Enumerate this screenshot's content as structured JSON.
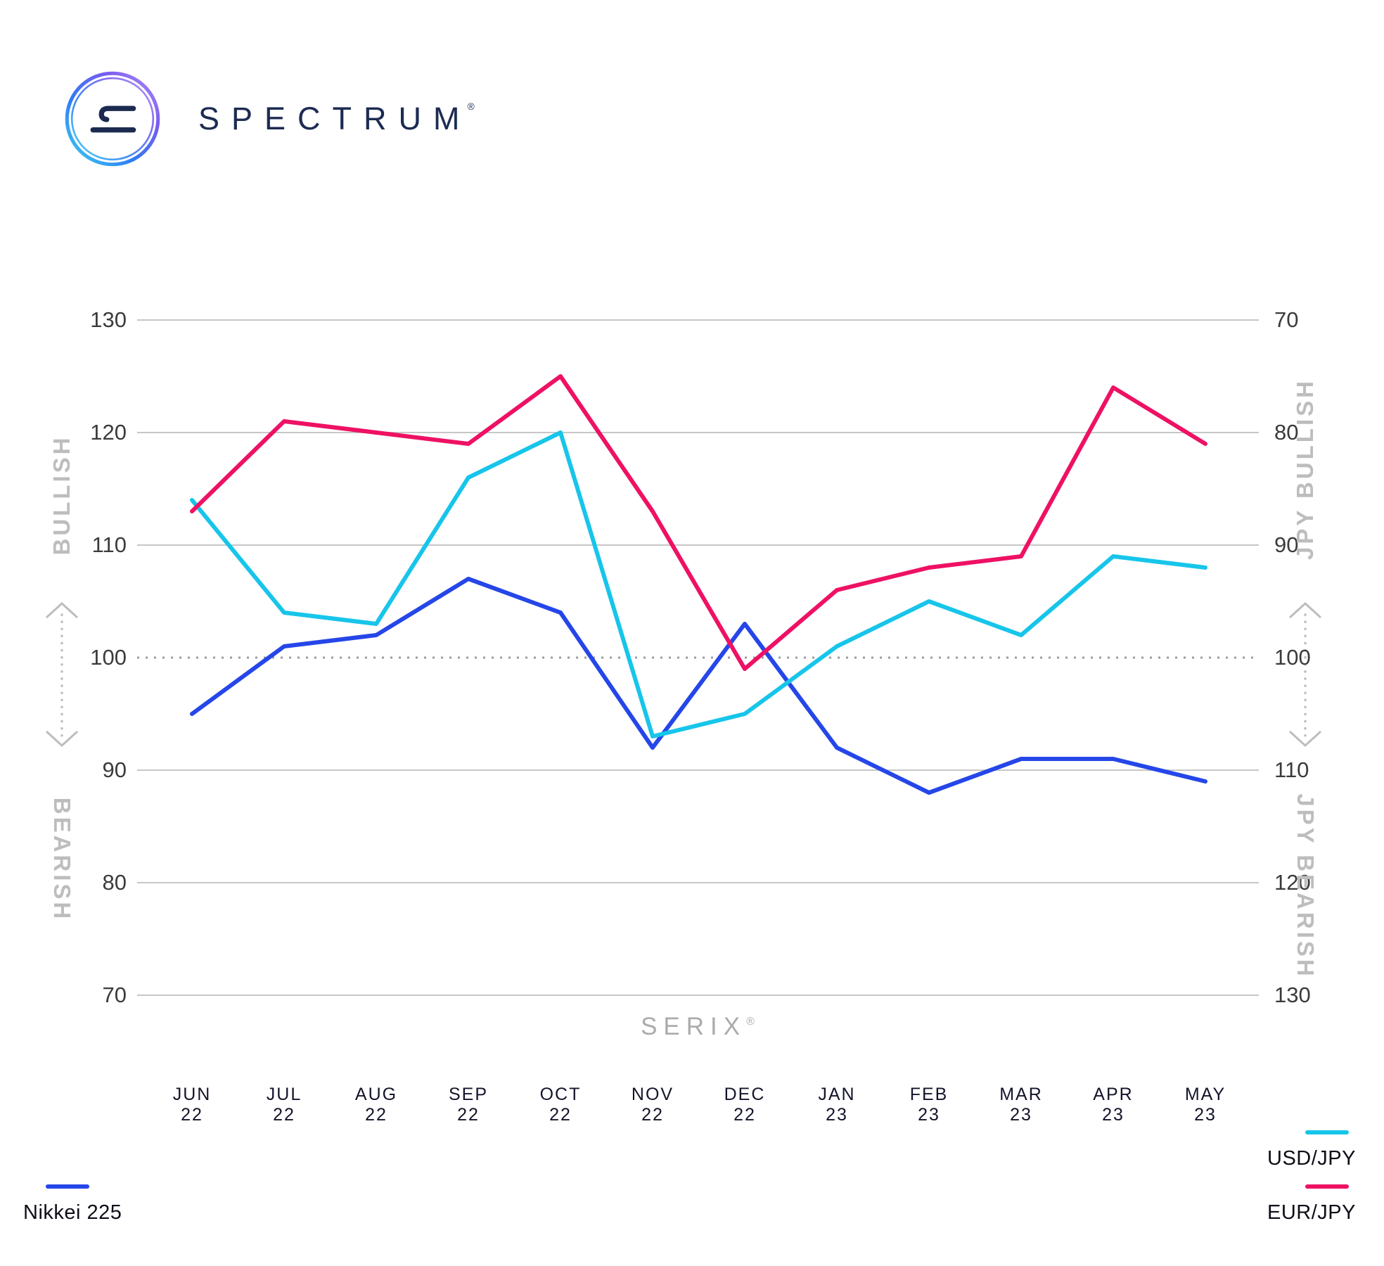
{
  "logo": {
    "brand": "SPECTRUM",
    "registered": "®"
  },
  "colors": {
    "brand_navy": "#1c2b52",
    "grid": "#c7c7c7",
    "dotted_line": "#9c9c9c",
    "axis_text": "#3b3b3b",
    "muted_label": "#bdbdbd",
    "month_label": "#14142b",
    "nikkei_blue": "#2546e8",
    "usdjpy_cyan": "#17c5ea",
    "eurjpy_pink": "#ee1164"
  },
  "chart_data": {
    "type": "line",
    "title": "",
    "xlabel": "SERIX",
    "xlabel_mark": "®",
    "grid": true,
    "legend_position": "bottom",
    "ylim_left": [
      70,
      130
    ],
    "ylim_right_inverted": [
      130,
      70
    ],
    "categories": [
      {
        "month": "JUN",
        "year": "22"
      },
      {
        "month": "JUL",
        "year": "22"
      },
      {
        "month": "AUG",
        "year": "22"
      },
      {
        "month": "SEP",
        "year": "22"
      },
      {
        "month": "OCT",
        "year": "22"
      },
      {
        "month": "NOV",
        "year": "22"
      },
      {
        "month": "DEC",
        "year": "22"
      },
      {
        "month": "JAN",
        "year": "23"
      },
      {
        "month": "FEB",
        "year": "23"
      },
      {
        "month": "MAR",
        "year": "23"
      },
      {
        "month": "APR",
        "year": "23"
      },
      {
        "month": "MAY",
        "year": "23"
      }
    ],
    "series": [
      {
        "name": "Nikkei 225",
        "color": "#2546e8",
        "values": [
          95,
          101,
          102,
          107,
          104,
          92,
          103,
          92,
          88,
          91,
          91,
          89
        ]
      },
      {
        "name": "USD/JPY",
        "color": "#17c5ea",
        "values": [
          114,
          104,
          103,
          116,
          120,
          93,
          95,
          101,
          105,
          102,
          109,
          108
        ]
      },
      {
        "name": "EUR/JPY",
        "color": "#ee1164",
        "values": [
          113,
          121,
          120,
          119,
          125,
          113,
          99,
          106,
          108,
          109,
          124,
          119
        ]
      }
    ],
    "left_axis": {
      "ticks": [
        130,
        120,
        110,
        100,
        90,
        80,
        70
      ],
      "dotted_tick": 100,
      "top_label": "BULLISH",
      "bottom_label": "BEARISH"
    },
    "right_axis": {
      "ticks": [
        70,
        80,
        90,
        100,
        110,
        120,
        130
      ],
      "top_label": "JPY BULLISH",
      "bottom_label": "JPY BEARISH"
    }
  }
}
